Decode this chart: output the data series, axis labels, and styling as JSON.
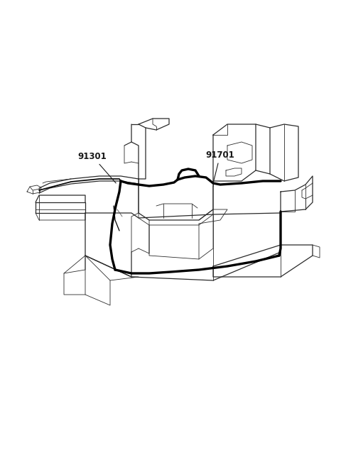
{
  "background_color": "#ffffff",
  "line_color": "#2a2a2a",
  "label_color": "#1a1a1a",
  "label_91301": "91301",
  "label_91701": "91701",
  "figsize": [
    4.8,
    6.55
  ],
  "dpi": 100,
  "xlim": [
    0,
    480
  ],
  "ylim": [
    0,
    655
  ]
}
